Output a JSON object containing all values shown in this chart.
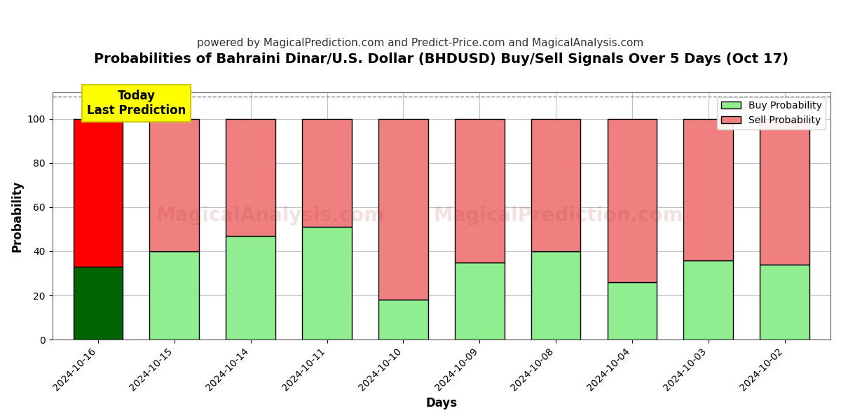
{
  "title": "Probabilities of Bahraini Dinar/U.S. Dollar (BHDUSD) Buy/Sell Signals Over 5 Days (Oct 17)",
  "subtitle": "powered by MagicalPrediction.com and Predict-Price.com and MagicalAnalysis.com",
  "xlabel": "Days",
  "ylabel": "Probability",
  "categories": [
    "2024-10-16",
    "2024-10-15",
    "2024-10-14",
    "2024-10-11",
    "2024-10-10",
    "2024-10-09",
    "2024-10-08",
    "2024-10-04",
    "2024-10-03",
    "2024-10-02"
  ],
  "buy_values": [
    33,
    40,
    47,
    51,
    18,
    35,
    40,
    26,
    36,
    34
  ],
  "sell_values": [
    67,
    60,
    53,
    49,
    82,
    65,
    60,
    74,
    64,
    66
  ],
  "buy_color_first": "#006400",
  "buy_color_rest": "#90EE90",
  "sell_color_first": "#FF0000",
  "sell_color_rest": "#F08080",
  "bar_edge_color": "#000000",
  "bar_edge_width": 1.0,
  "ylim": [
    0,
    112
  ],
  "yticks": [
    0,
    20,
    40,
    60,
    80,
    100
  ],
  "dashed_line_y": 110,
  "dashed_line_color": "#808080",
  "grid_color": "#C0C0C0",
  "watermark_text1": "MagicalAnalysis.com",
  "watermark_text2": "MagicalPrediction.com",
  "annotation_text": "Today\nLast Prediction",
  "annotation_bg": "#FFFF00",
  "annotation_border": "#CCCC00",
  "legend_buy_label": "Buy Probability",
  "legend_sell_label": "Sell Probability",
  "title_fontsize": 14,
  "subtitle_fontsize": 11,
  "axis_label_fontsize": 12,
  "tick_fontsize": 10
}
